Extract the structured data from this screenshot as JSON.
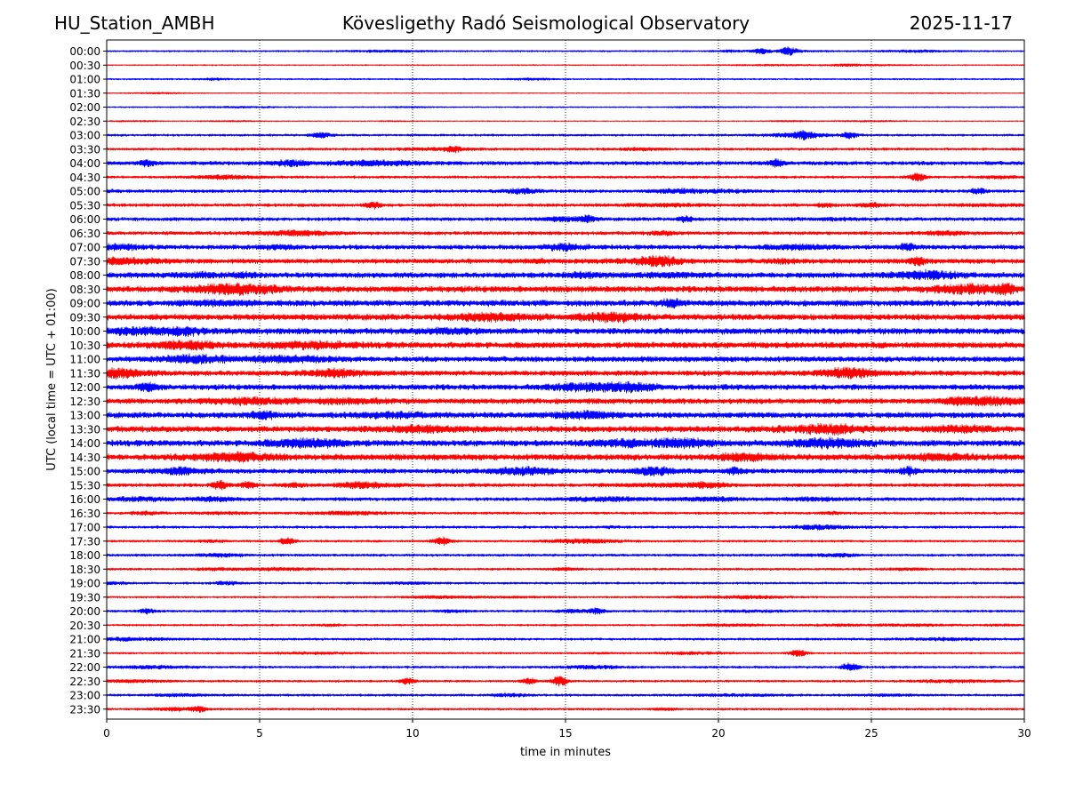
{
  "header": {
    "station": "HU_Station_AMBH",
    "observatory": "Kövesligethy Radó Seismological Observatory",
    "date": "2025-11-17"
  },
  "chart_data": {
    "type": "line",
    "title": "Kövesligethy Radó Seismological Observatory",
    "xlabel": "time in minutes",
    "ylabel": "UTC (local time = UTC + 01:00)",
    "xlim": [
      0,
      30
    ],
    "xticks": [
      0,
      5,
      10,
      15,
      20,
      25,
      30
    ],
    "grid": "vertical dotted at x ticks",
    "row_labels": [
      "00:00",
      "00:30",
      "01:00",
      "01:30",
      "02:00",
      "02:30",
      "03:00",
      "03:30",
      "04:00",
      "04:30",
      "05:00",
      "05:30",
      "06:00",
      "06:30",
      "07:00",
      "07:30",
      "08:00",
      "08:30",
      "09:00",
      "09:30",
      "10:00",
      "10:30",
      "11:00",
      "11:30",
      "12:00",
      "12:30",
      "13:00",
      "13:30",
      "14:00",
      "14:30",
      "15:00",
      "15:30",
      "16:00",
      "16:30",
      "17:00",
      "17:30",
      "18:00",
      "18:30",
      "19:00",
      "19:30",
      "20:00",
      "20:30",
      "21:00",
      "21:30",
      "22:00",
      "22:30",
      "23:00",
      "23:30"
    ],
    "trace_colors": [
      "#0000ff",
      "#ff0000"
    ],
    "noise_amplitude_by_row": [
      1,
      0.7,
      1,
      0.6,
      0.8,
      0.6,
      1.4,
      1.6,
      2.5,
      1.6,
      2,
      2,
      2.2,
      2.2,
      2.8,
      3,
      3.4,
      3.8,
      3.8,
      3.8,
      3.8,
      3.8,
      3.4,
      3.2,
      3.4,
      3.4,
      3.6,
      3.8,
      3.8,
      3.8,
      3,
      2.2,
      2.2,
      1.6,
      1.6,
      1.4,
      1.6,
      1.4,
      1.4,
      1.2,
      1.5,
      1.2,
      1.5,
      1.2,
      1.5,
      1.4,
      1.5,
      1.4
    ],
    "events": [
      {
        "row": 0,
        "t": 21.4,
        "amp": 2.5
      },
      {
        "row": 0,
        "t": 22.3,
        "amp": 4
      },
      {
        "row": 6,
        "t": 22.8,
        "amp": 2.5
      },
      {
        "row": 6,
        "t": 24.3,
        "amp": 3
      },
      {
        "row": 7,
        "t": 11.3,
        "amp": 2.5
      },
      {
        "row": 8,
        "t": 1.3,
        "amp": 3
      },
      {
        "row": 8,
        "t": 21.9,
        "amp": 3
      },
      {
        "row": 9,
        "t": 26.5,
        "amp": 4
      },
      {
        "row": 10,
        "t": 28.5,
        "amp": 2.5
      },
      {
        "row": 11,
        "t": 8.7,
        "amp": 3
      },
      {
        "row": 12,
        "t": 15.7,
        "amp": 3
      },
      {
        "row": 12,
        "t": 18.9,
        "amp": 2.5
      },
      {
        "row": 14,
        "t": 26.2,
        "amp": 3.5
      },
      {
        "row": 15,
        "t": 26.5,
        "amp": 4
      },
      {
        "row": 17,
        "t": 29.4,
        "amp": 4
      },
      {
        "row": 30,
        "t": 20.5,
        "amp": 3
      },
      {
        "row": 30,
        "t": 26.2,
        "amp": 3.5
      },
      {
        "row": 31,
        "t": 3.7,
        "amp": 4
      },
      {
        "row": 31,
        "t": 4.6,
        "amp": 3
      },
      {
        "row": 35,
        "t": 5.9,
        "amp": 3.5
      },
      {
        "row": 35,
        "t": 11.0,
        "amp": 3
      },
      {
        "row": 40,
        "t": 1.3,
        "amp": 2.5
      },
      {
        "row": 40,
        "t": 16.0,
        "amp": 3
      },
      {
        "row": 43,
        "t": 22.6,
        "amp": 3.5
      },
      {
        "row": 44,
        "t": 24.3,
        "amp": 4.5
      },
      {
        "row": 45,
        "t": 9.8,
        "amp": 3
      },
      {
        "row": 45,
        "t": 13.8,
        "amp": 3
      },
      {
        "row": 45,
        "t": 14.8,
        "amp": 5
      },
      {
        "row": 47,
        "t": 3.0,
        "amp": 2.5
      }
    ]
  }
}
